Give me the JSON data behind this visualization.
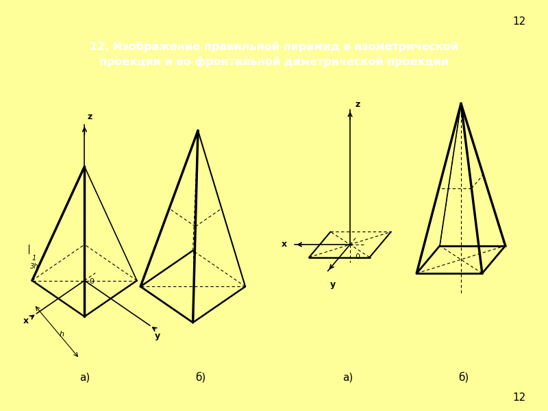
{
  "title": "12. Изображение правильной пирамид в изометрической\nпроекции и во фронтальной диметрической проекции",
  "title_color": "#FFFFFF",
  "title_bg": "#CC4400",
  "bg_outer": "#FFFF99",
  "bg_inner": "#FFFFF0",
  "page_num": "12",
  "label_a": "а)",
  "label_b": "б)"
}
